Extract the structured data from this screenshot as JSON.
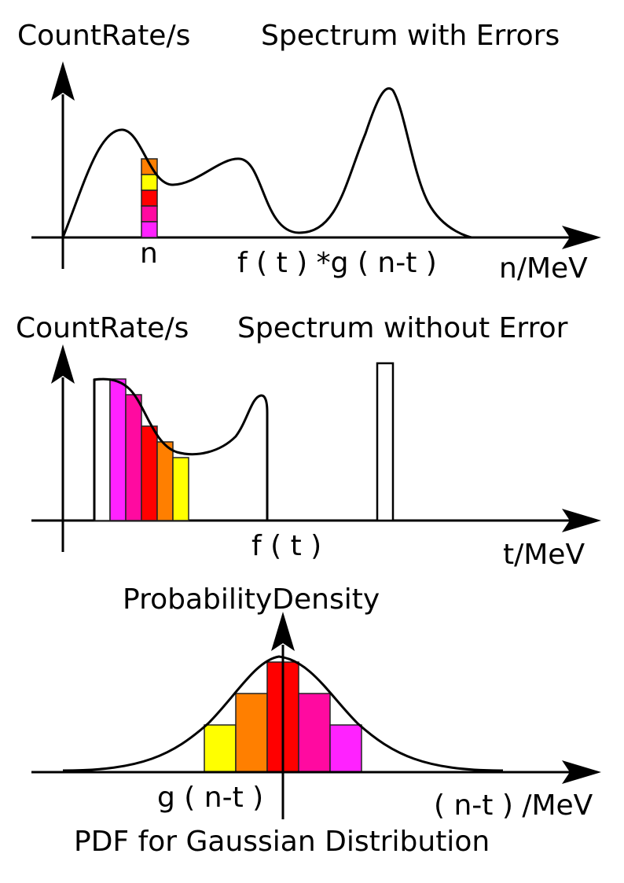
{
  "colors": {
    "magenta": "#ff22ff",
    "pink": "#ff0aa0",
    "red": "#ff0000",
    "orange": "#ff7f00",
    "yellow": "#ffff00",
    "white": "#ffffff",
    "ink": "#000000"
  },
  "panel_top": {
    "ylabel": "CountRate/s",
    "title": "Spectrum with Errors",
    "bin_label": "n",
    "formula": "f ( t ) *g ( n-t )",
    "xlabel": "n/MeV"
  },
  "panel_middle": {
    "ylabel": "CountRate/s",
    "title": "Spectrum without Error",
    "formula": "f ( t )",
    "xlabel": "t/MeV"
  },
  "panel_bottom": {
    "ylabel": "ProbabilityDensity",
    "formula": "g ( n-t )",
    "xlabel": "( n-t ) /MeV",
    "caption": "PDF for Gaussian Distribution"
  }
}
